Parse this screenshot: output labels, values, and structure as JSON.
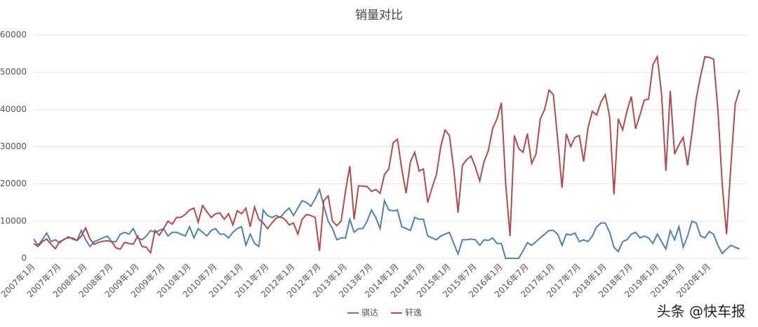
{
  "chart_data": {
    "type": "line",
    "title": "销量对比",
    "categories": [
      "2007年1月",
      null,
      null,
      null,
      null,
      null,
      "2007年7月",
      null,
      null,
      null,
      null,
      null,
      "2008年1月",
      null,
      null,
      null,
      null,
      null,
      "2008年7月",
      null,
      null,
      null,
      null,
      null,
      "2009年1月",
      null,
      null,
      null,
      null,
      null,
      "2009年7月",
      null,
      null,
      null,
      null,
      null,
      "2010年1月",
      null,
      null,
      null,
      null,
      null,
      "2010年7月",
      null,
      null,
      null,
      null,
      null,
      "2011年1月",
      null,
      null,
      null,
      null,
      null,
      "2011年7月",
      null,
      null,
      null,
      null,
      null,
      "2012年1月",
      null,
      null,
      null,
      null,
      null,
      "2012年7月",
      null,
      null,
      null,
      null,
      null,
      "2013年1月",
      null,
      null,
      null,
      null,
      null,
      "2013年7月",
      null,
      null,
      null,
      null,
      null,
      "2014年1月",
      null,
      null,
      null,
      null,
      null,
      "2014年7月",
      null,
      null,
      null,
      null,
      null,
      "2015年1月",
      null,
      null,
      null,
      null,
      null,
      "2015年7月",
      null,
      null,
      null,
      null,
      null,
      "2016年1月",
      null,
      null,
      null,
      null,
      null,
      "2016年7月",
      null,
      null,
      null,
      null,
      null,
      "2017年1月",
      null,
      null,
      null,
      null,
      null,
      "2017年7月",
      null,
      null,
      null,
      null,
      null,
      "2018年1月",
      null,
      null,
      null,
      null,
      null,
      "2018年7月",
      null,
      null,
      null,
      null,
      null,
      "2019年1月",
      null,
      null,
      null,
      null,
      null,
      "2019年7月",
      null,
      null,
      null,
      null,
      null,
      "2020年1月",
      null,
      null,
      null,
      null,
      null,
      null,
      null
    ],
    "series": [
      {
        "name": "骐达",
        "color": "#4f81b3",
        "values": [
          5200,
          3500,
          5000,
          6800,
          4500,
          5000,
          4200,
          5200,
          5500,
          5500,
          4800,
          7500,
          5000,
          3200,
          4500,
          5000,
          5500,
          6000,
          4500,
          4500,
          6500,
          7000,
          6500,
          8000,
          5500,
          5000,
          6000,
          7500,
          7000,
          7500,
          8000,
          6000,
          7000,
          7000,
          6500,
          6000,
          8500,
          5500,
          8000,
          7000,
          6000,
          7500,
          8000,
          6500,
          6500,
          5500,
          7000,
          8000,
          8500,
          3500,
          6500,
          4000,
          3200,
          13000,
          11500,
          11000,
          11500,
          11000,
          12500,
          13500,
          11500,
          13500,
          15500,
          15000,
          14000,
          16000,
          18500,
          14000,
          10000,
          8000,
          5000,
          5500,
          5500,
          10500,
          7000,
          8000,
          8000,
          10000,
          13000,
          11000,
          8000,
          15500,
          13000,
          12800,
          13000,
          8500,
          8000,
          7500,
          11000,
          10500,
          10500,
          6000,
          5500,
          5000,
          6000,
          6500,
          7000,
          4000,
          1200,
          5000,
          5000,
          5200,
          5000,
          3500,
          5000,
          4800,
          5500,
          4000,
          4000,
          0,
          0,
          0,
          0,
          2000,
          4200,
          3500,
          4500,
          5500,
          6500,
          7500,
          7500,
          6500,
          3500,
          6500,
          6300,
          6800,
          4500,
          5000,
          4500,
          6000,
          8500,
          9500,
          9500,
          7000,
          3000,
          1800,
          4500,
          5000,
          6500,
          7000,
          5500,
          6000,
          5500,
          4000,
          6500,
          4500,
          2500,
          7500,
          5000,
          8500,
          3000,
          6000,
          10000,
          9500,
          6000,
          5500,
          7200,
          6500,
          3500,
          1300,
          2500,
          3500,
          3000,
          2500
        ]
      },
      {
        "name": "轩逸",
        "color": "#b54a4c",
        "values": [
          4000,
          3200,
          4500,
          5200,
          3800,
          2600,
          4500,
          5000,
          5800,
          5200,
          4800,
          6000,
          8200,
          5200,
          3800,
          4300,
          4600,
          4700,
          4500,
          2800,
          2500,
          4300,
          4000,
          3800,
          6000,
          3200,
          3000,
          1500,
          7500,
          6200,
          8000,
          10000,
          9200,
          11000,
          11000,
          11800,
          13000,
          13500,
          9700,
          14200,
          12500,
          11000,
          12000,
          12200,
          10500,
          12000,
          9000,
          12800,
          12000,
          13500,
          8500,
          13800,
          10500,
          9500,
          8000,
          9500,
          10800,
          11200,
          10500,
          9000,
          9500,
          6500,
          10500,
          11800,
          11500,
          11000,
          2000,
          15500,
          16800,
          10000,
          8800,
          10000,
          18000,
          24800,
          10500,
          19500,
          19400,
          19300,
          18000,
          18500,
          17500,
          22500,
          24000,
          31000,
          32000,
          24000,
          17500,
          26000,
          28500,
          23500,
          24000,
          15000,
          19000,
          22500,
          30000,
          34500,
          33000,
          24000,
          12300,
          25000,
          26500,
          27500,
          24500,
          20800,
          26000,
          29000,
          35000,
          37500,
          41800,
          20000,
          6000,
          33000,
          29500,
          28500,
          33500,
          25500,
          28000,
          37500,
          40000,
          45200,
          44000,
          32000,
          19000,
          33500,
          30000,
          32500,
          33000,
          26000,
          35000,
          39500,
          38500,
          42000,
          44000,
          38000,
          17200,
          37500,
          34500,
          39500,
          43500,
          34800,
          38500,
          42500,
          42800,
          52000,
          54200,
          44000,
          23500,
          45000,
          28000,
          30500,
          32500,
          25000,
          33500,
          43000,
          49000,
          54200,
          54000,
          53500,
          40000,
          20000,
          6500,
          25000,
          41500,
          45300
        ]
      }
    ],
    "ylim": [
      0,
      60000
    ],
    "yticks": [
      0,
      10000,
      20000,
      30000,
      40000,
      50000,
      60000
    ],
    "grid": true,
    "legend": "bottom"
  },
  "watermark": "头条 @快车报"
}
